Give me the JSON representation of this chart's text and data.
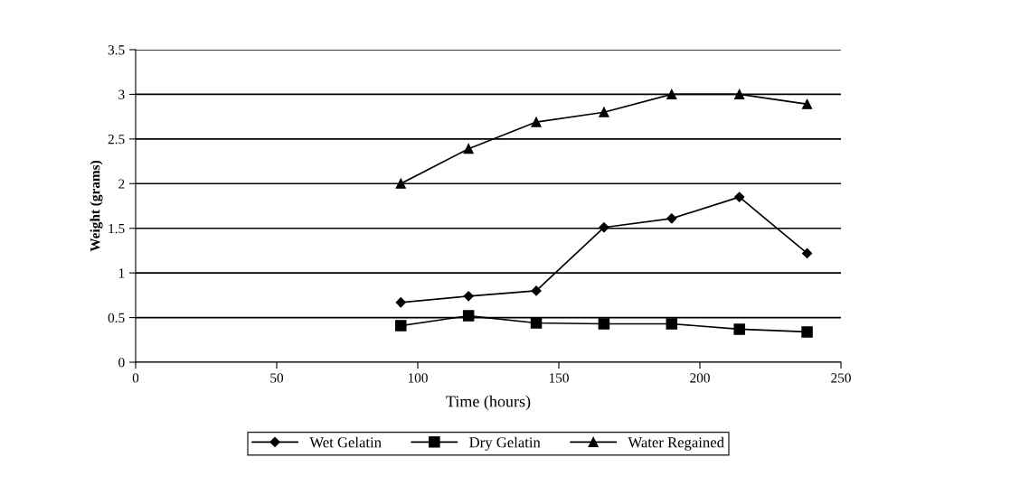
{
  "chart_data": {
    "type": "line",
    "xlabel": "Time (hours)",
    "ylabel": "Weight (grams)",
    "x": [
      94,
      118,
      142,
      166,
      190,
      214,
      238
    ],
    "series": [
      {
        "name": "Wet Gelatin",
        "color": "#000000",
        "marker": "diamond",
        "values": [
          0.67,
          0.74,
          0.8,
          1.51,
          1.61,
          1.85,
          1.22
        ]
      },
      {
        "name": "Dry Gelatin",
        "color": "#000000",
        "marker": "square",
        "values": [
          0.41,
          0.52,
          0.44,
          0.43,
          0.43,
          0.37,
          0.34
        ]
      },
      {
        "name": "Water Regained",
        "color": "#000000",
        "marker": "triangle",
        "values": [
          2.0,
          2.39,
          2.69,
          2.8,
          3.0,
          3.0,
          2.89
        ]
      }
    ],
    "xlim": [
      0,
      250
    ],
    "xticks": [
      0,
      50,
      100,
      150,
      200,
      250
    ],
    "ylim": [
      0,
      3.5
    ],
    "yticks": [
      0,
      0.5,
      1,
      1.5,
      2,
      2.5,
      3,
      3.5
    ],
    "grid": "y",
    "legend": "bottom",
    "line_style": "solid"
  }
}
